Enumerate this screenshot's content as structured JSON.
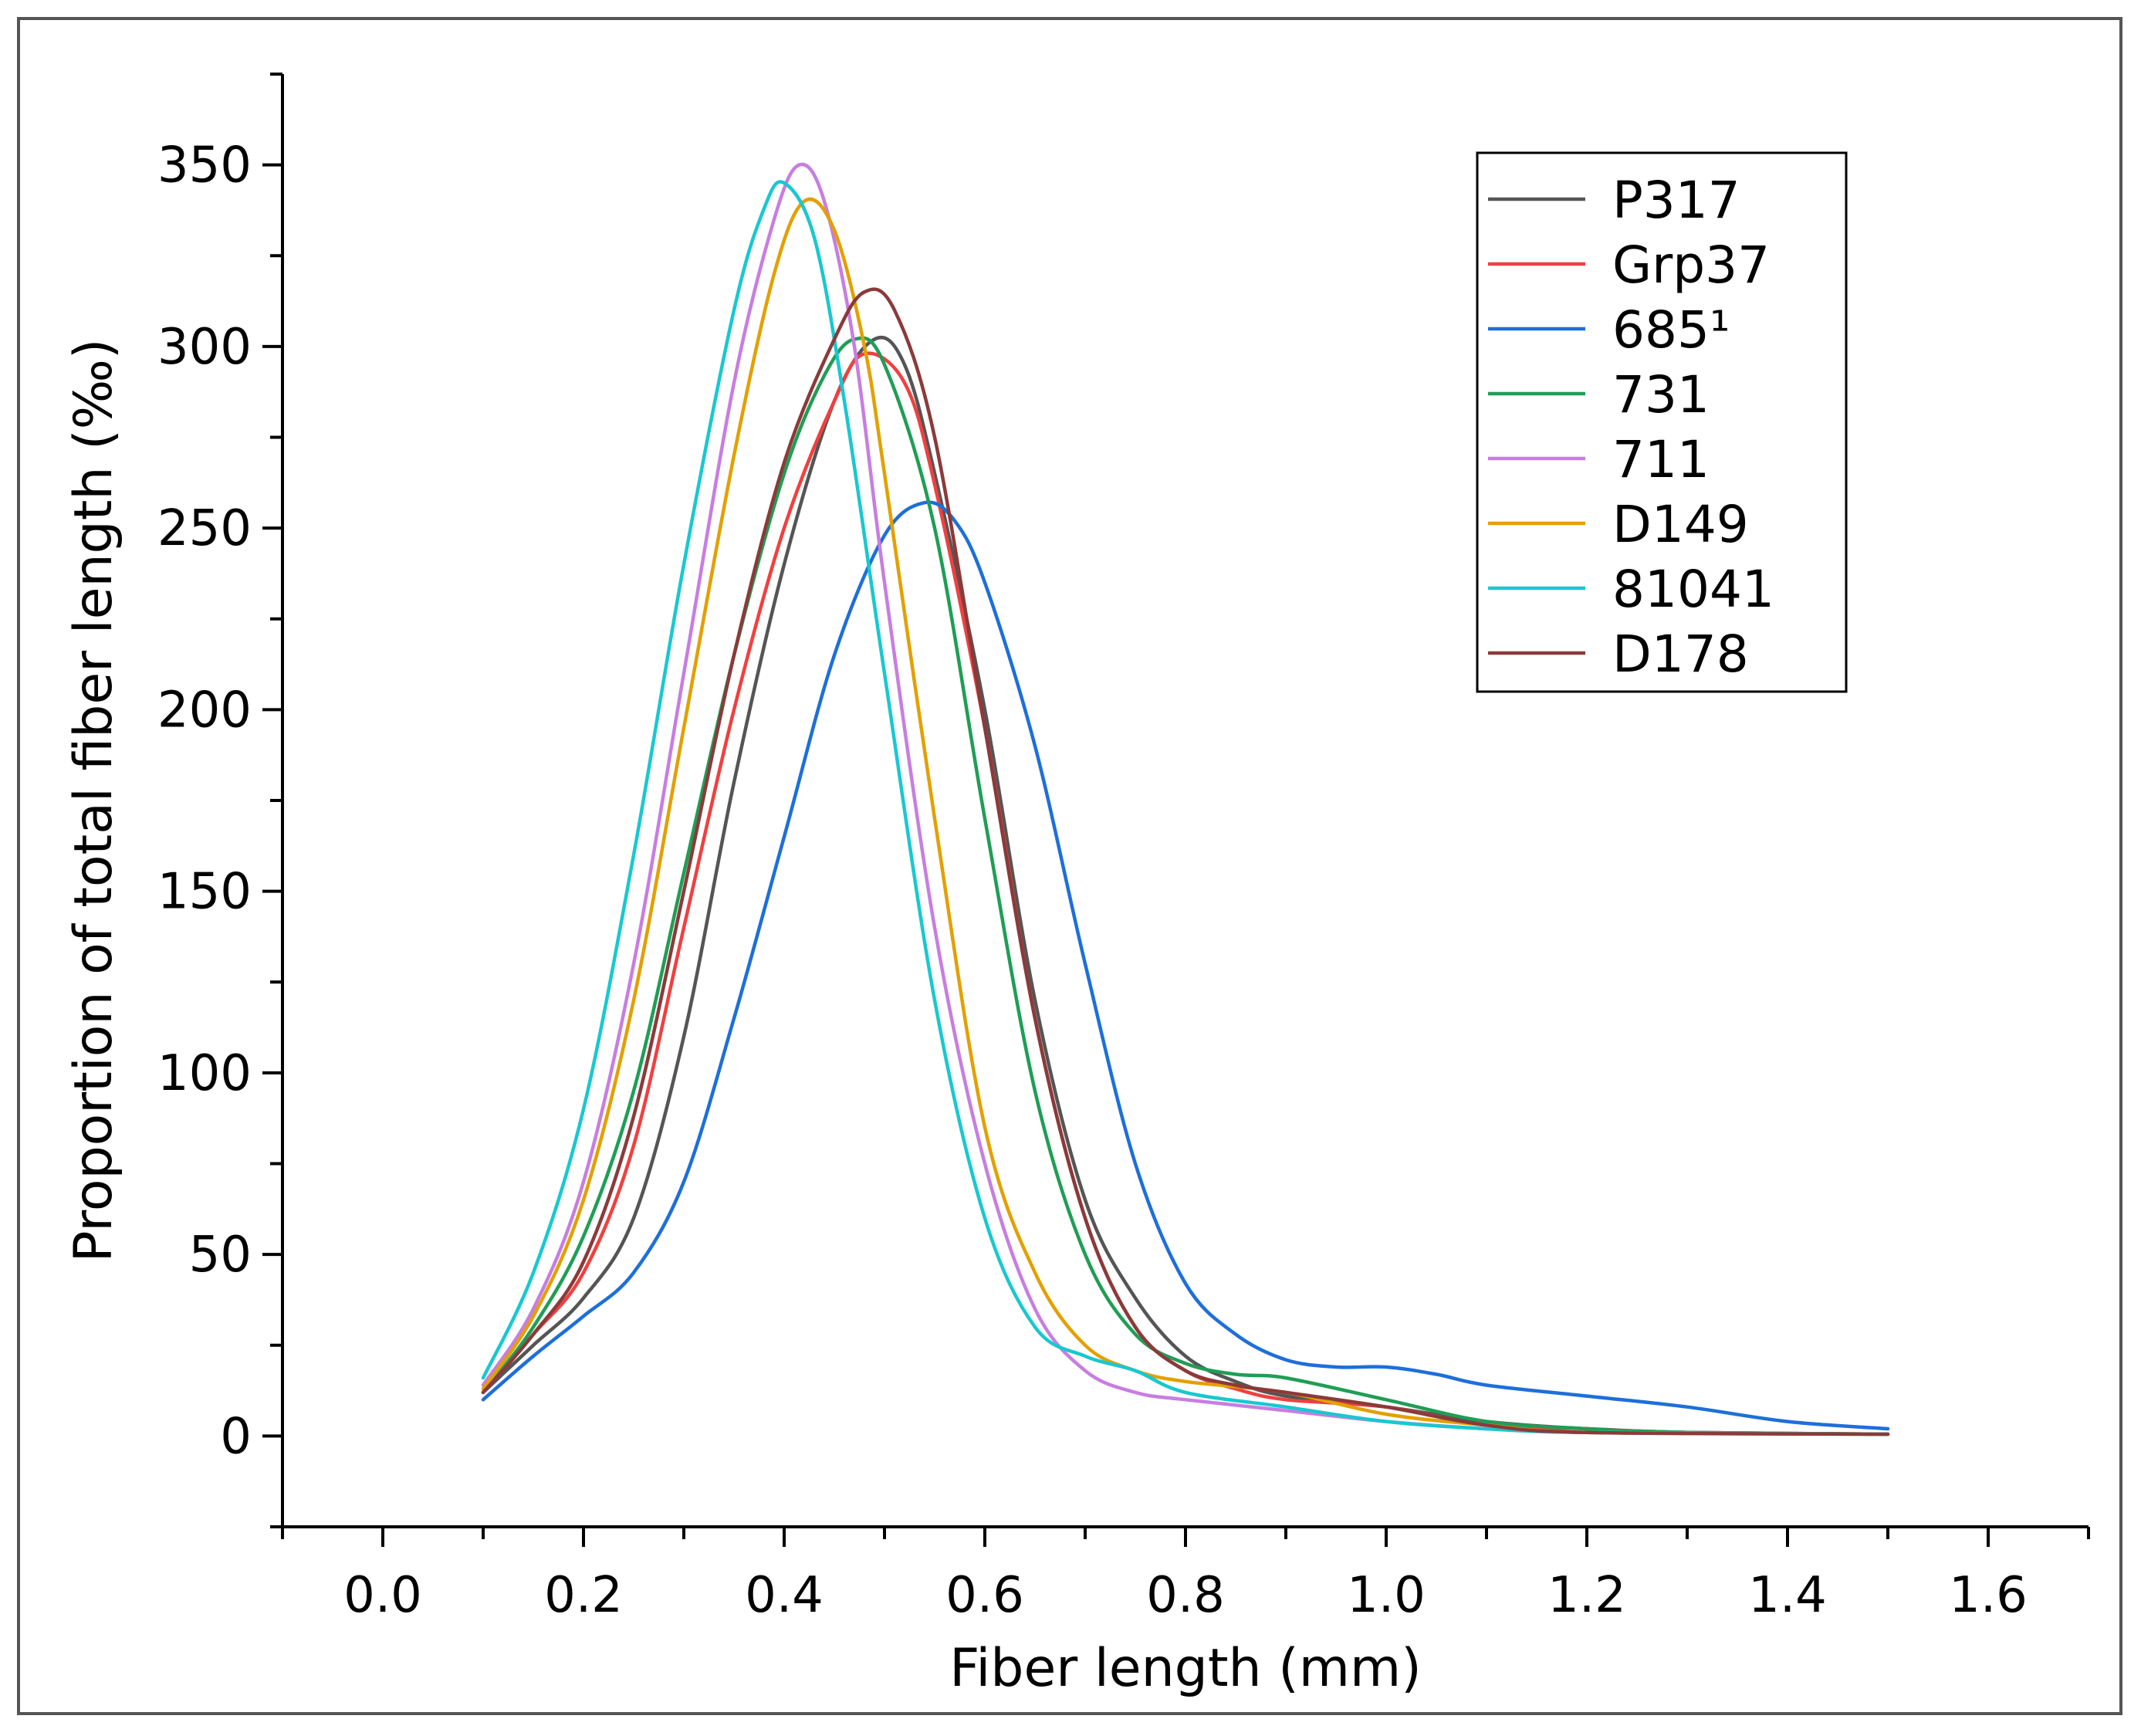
{
  "chart_data": {
    "type": "line",
    "title": "",
    "xlabel": "Fiber length (mm)",
    "ylabel": "Proportion of total fiber length (‰)",
    "xlim": [
      -0.1,
      1.7
    ],
    "ylim": [
      -25,
      375
    ],
    "xticks": [
      "0.0",
      "0.2",
      "0.4",
      "0.6",
      "0.8",
      "1.0",
      "1.2",
      "1.4",
      "1.6"
    ],
    "xtick_values": [
      0.0,
      0.2,
      0.4,
      0.6,
      0.8,
      1.0,
      1.2,
      1.4,
      1.6
    ],
    "yticks": [
      "0",
      "50",
      "100",
      "150",
      "200",
      "250",
      "300",
      "350"
    ],
    "ytick_values": [
      0,
      50,
      100,
      150,
      200,
      250,
      300,
      350
    ],
    "grid": false,
    "legend_position": "top-right",
    "series": [
      {
        "name": "P317",
        "color": "#555555",
        "points": [
          [
            0.1,
            12
          ],
          [
            0.15,
            25
          ],
          [
            0.2,
            38
          ],
          [
            0.25,
            60
          ],
          [
            0.3,
            110
          ],
          [
            0.35,
            180
          ],
          [
            0.4,
            240
          ],
          [
            0.45,
            285
          ],
          [
            0.49,
            302
          ],
          [
            0.52,
            295
          ],
          [
            0.55,
            265
          ],
          [
            0.6,
            200
          ],
          [
            0.65,
            120
          ],
          [
            0.7,
            65
          ],
          [
            0.75,
            38
          ],
          [
            0.8,
            22
          ],
          [
            0.85,
            15
          ],
          [
            0.9,
            11
          ],
          [
            1.0,
            8
          ],
          [
            1.1,
            4
          ],
          [
            1.2,
            2
          ],
          [
            1.3,
            1
          ],
          [
            1.5,
            0.5
          ]
        ]
      },
      {
        "name": "Grp37",
        "color": "#f04040",
        "points": [
          [
            0.1,
            12
          ],
          [
            0.15,
            28
          ],
          [
            0.2,
            45
          ],
          [
            0.25,
            80
          ],
          [
            0.3,
            140
          ],
          [
            0.35,
            200
          ],
          [
            0.4,
            250
          ],
          [
            0.45,
            285
          ],
          [
            0.48,
            298
          ],
          [
            0.52,
            290
          ],
          [
            0.55,
            262
          ],
          [
            0.6,
            195
          ],
          [
            0.65,
            115
          ],
          [
            0.7,
            60
          ],
          [
            0.75,
            30
          ],
          [
            0.8,
            18
          ],
          [
            0.85,
            13
          ],
          [
            0.9,
            10
          ],
          [
            1.0,
            8
          ],
          [
            1.1,
            3
          ],
          [
            1.2,
            2
          ],
          [
            1.3,
            1
          ],
          [
            1.5,
            0.5
          ]
        ]
      },
      {
        "name": "685¹",
        "color": "#1e6fd9",
        "points": [
          [
            0.1,
            10
          ],
          [
            0.15,
            22
          ],
          [
            0.2,
            33
          ],
          [
            0.25,
            45
          ],
          [
            0.3,
            70
          ],
          [
            0.35,
            115
          ],
          [
            0.4,
            165
          ],
          [
            0.45,
            215
          ],
          [
            0.5,
            248
          ],
          [
            0.54,
            257
          ],
          [
            0.57,
            252
          ],
          [
            0.6,
            235
          ],
          [
            0.65,
            190
          ],
          [
            0.7,
            130
          ],
          [
            0.75,
            75
          ],
          [
            0.8,
            42
          ],
          [
            0.85,
            28
          ],
          [
            0.9,
            21
          ],
          [
            0.95,
            19
          ],
          [
            1.0,
            19
          ],
          [
            1.05,
            17
          ],
          [
            1.1,
            14
          ],
          [
            1.2,
            11
          ],
          [
            1.3,
            8
          ],
          [
            1.4,
            4
          ],
          [
            1.5,
            2
          ]
        ]
      },
      {
        "name": "731",
        "color": "#1f9e55",
        "points": [
          [
            0.1,
            12
          ],
          [
            0.15,
            30
          ],
          [
            0.2,
            55
          ],
          [
            0.25,
            95
          ],
          [
            0.3,
            155
          ],
          [
            0.35,
            215
          ],
          [
            0.4,
            265
          ],
          [
            0.44,
            292
          ],
          [
            0.47,
            302
          ],
          [
            0.5,
            295
          ],
          [
            0.55,
            250
          ],
          [
            0.6,
            170
          ],
          [
            0.65,
            95
          ],
          [
            0.7,
            50
          ],
          [
            0.75,
            28
          ],
          [
            0.8,
            20
          ],
          [
            0.85,
            17
          ],
          [
            0.9,
            16
          ],
          [
            1.0,
            10
          ],
          [
            1.1,
            4
          ],
          [
            1.2,
            2
          ],
          [
            1.3,
            1
          ],
          [
            1.5,
            0.5
          ]
        ]
      },
      {
        "name": "711",
        "color": "#c77ee0",
        "points": [
          [
            0.1,
            14
          ],
          [
            0.15,
            35
          ],
          [
            0.2,
            70
          ],
          [
            0.25,
            130
          ],
          [
            0.3,
            210
          ],
          [
            0.35,
            290
          ],
          [
            0.39,
            335
          ],
          [
            0.415,
            350
          ],
          [
            0.44,
            340
          ],
          [
            0.47,
            300
          ],
          [
            0.5,
            235
          ],
          [
            0.55,
            140
          ],
          [
            0.6,
            75
          ],
          [
            0.65,
            35
          ],
          [
            0.7,
            18
          ],
          [
            0.75,
            12
          ],
          [
            0.8,
            10
          ],
          [
            0.9,
            7
          ],
          [
            1.0,
            4
          ],
          [
            1.1,
            2
          ],
          [
            1.2,
            1
          ],
          [
            1.5,
            0.5
          ]
        ]
      },
      {
        "name": "D149",
        "color": "#e3a000",
        "points": [
          [
            0.1,
            13
          ],
          [
            0.15,
            33
          ],
          [
            0.2,
            65
          ],
          [
            0.25,
            120
          ],
          [
            0.3,
            195
          ],
          [
            0.35,
            270
          ],
          [
            0.39,
            320
          ],
          [
            0.42,
            340
          ],
          [
            0.45,
            332
          ],
          [
            0.48,
            300
          ],
          [
            0.5,
            265
          ],
          [
            0.55,
            170
          ],
          [
            0.6,
            85
          ],
          [
            0.65,
            45
          ],
          [
            0.7,
            25
          ],
          [
            0.75,
            18
          ],
          [
            0.8,
            15
          ],
          [
            0.9,
            12
          ],
          [
            1.0,
            6
          ],
          [
            1.1,
            3
          ],
          [
            1.2,
            1
          ],
          [
            1.5,
            0.5
          ]
        ]
      },
      {
        "name": "81041",
        "color": "#19c8d0",
        "points": [
          [
            0.1,
            16
          ],
          [
            0.15,
            45
          ],
          [
            0.2,
            90
          ],
          [
            0.25,
            160
          ],
          [
            0.3,
            240
          ],
          [
            0.35,
            310
          ],
          [
            0.38,
            338
          ],
          [
            0.4,
            345
          ],
          [
            0.43,
            330
          ],
          [
            0.46,
            285
          ],
          [
            0.5,
            210
          ],
          [
            0.55,
            120
          ],
          [
            0.6,
            60
          ],
          [
            0.65,
            30
          ],
          [
            0.7,
            22
          ],
          [
            0.75,
            18
          ],
          [
            0.8,
            12
          ],
          [
            0.9,
            8
          ],
          [
            1.0,
            4
          ],
          [
            1.1,
            2
          ],
          [
            1.2,
            1
          ],
          [
            1.5,
            0.5
          ]
        ]
      },
      {
        "name": "D178",
        "color": "#8b3a3a",
        "points": [
          [
            0.1,
            12
          ],
          [
            0.15,
            28
          ],
          [
            0.2,
            48
          ],
          [
            0.25,
            88
          ],
          [
            0.3,
            150
          ],
          [
            0.35,
            215
          ],
          [
            0.4,
            268
          ],
          [
            0.45,
            302
          ],
          [
            0.48,
            315
          ],
          [
            0.51,
            310
          ],
          [
            0.55,
            275
          ],
          [
            0.6,
            195
          ],
          [
            0.65,
            115
          ],
          [
            0.7,
            60
          ],
          [
            0.75,
            30
          ],
          [
            0.8,
            18
          ],
          [
            0.85,
            14
          ],
          [
            0.9,
            12
          ],
          [
            1.0,
            8
          ],
          [
            1.1,
            3
          ],
          [
            1.2,
            1
          ],
          [
            1.5,
            0.5
          ]
        ]
      }
    ]
  }
}
